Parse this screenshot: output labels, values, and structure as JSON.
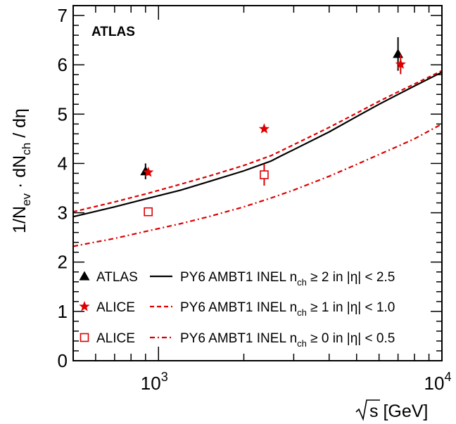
{
  "chart_data": {
    "type": "scatter",
    "annotation": "ATLAS",
    "x_axis": {
      "scale": "log",
      "range": [
        500,
        10000
      ],
      "tick_labels": [
        {
          "value": 1000,
          "base": "10",
          "exp": "3"
        },
        {
          "value": 10000,
          "base": "10",
          "exp": "4"
        }
      ],
      "title_parts": {
        "sqrt": "s",
        "rest": " [GeV]"
      }
    },
    "y_axis": {
      "scale": "linear",
      "range": [
        0,
        7.2
      ],
      "tick_labels": [
        "0",
        "1",
        "2",
        "3",
        "4",
        "5",
        "6",
        "7"
      ],
      "title_parts": {
        "a": "1/N",
        "a_sub": "ev",
        "b": " · dN",
        "b_sub": "ch",
        "c": " / dη"
      }
    },
    "series": [
      {
        "name": "ATLAS",
        "marker": "triangle",
        "color": "#000000",
        "points": [
          {
            "x": 900,
            "y": 3.84,
            "err": 0.16
          },
          {
            "x": 7000,
            "y": 6.22,
            "err": 0.34
          }
        ]
      },
      {
        "name": "ALICE",
        "marker": "star",
        "color": "#dd0000",
        "points": [
          {
            "x": 920,
            "y": 3.82,
            "err": 0.0
          },
          {
            "x": 2360,
            "y": 4.7,
            "err": 0.0
          },
          {
            "x": 7150,
            "y": 6.01,
            "err": 0.2
          }
        ]
      },
      {
        "name": "ALICE",
        "marker": "open-square",
        "color": "#dd0000",
        "points": [
          {
            "x": 920,
            "y": 3.02,
            "err": 0.0
          },
          {
            "x": 2360,
            "y": 3.77,
            "err": 0.22
          }
        ]
      }
    ],
    "curves": [
      {
        "name_parts": {
          "pre": "PY6 AMBT1 INEL n",
          "sub": "ch",
          "post": " ≥ 2 in |η| < 2.5"
        },
        "style": "solid",
        "color": "#000000",
        "x": [
          500,
          700,
          900,
          1200,
          1500,
          2000,
          2500,
          2700,
          3000,
          4000,
          5000,
          6000,
          7000,
          8000,
          10000
        ],
        "y": [
          2.92,
          3.12,
          3.28,
          3.46,
          3.63,
          3.85,
          4.05,
          4.15,
          4.28,
          4.64,
          4.95,
          5.2,
          5.4,
          5.57,
          5.85
        ]
      },
      {
        "name_parts": {
          "pre": "PY6 AMBT1 INEL n",
          "sub": "ch",
          "post": " ≥ 1 in |η| < 1.0"
        },
        "style": "dashed",
        "color": "#dd0000",
        "x": [
          500,
          700,
          900,
          1200,
          1500,
          2000,
          2500,
          3000,
          4000,
          5000,
          6000,
          7000,
          8000,
          10000
        ],
        "y": [
          3.02,
          3.22,
          3.38,
          3.58,
          3.74,
          3.96,
          4.16,
          4.38,
          4.73,
          5.02,
          5.26,
          5.45,
          5.61,
          5.88
        ]
      },
      {
        "name_parts": {
          "pre": "PY6 AMBT1 INEL n",
          "sub": "ch",
          "post": " ≥ 0 in |η| < 0.5"
        },
        "style": "dashdot",
        "color": "#dd0000",
        "x": [
          500,
          700,
          900,
          1200,
          1500,
          2000,
          2500,
          3000,
          4000,
          5000,
          6000,
          7000,
          8000,
          10000
        ],
        "y": [
          2.32,
          2.48,
          2.62,
          2.78,
          2.92,
          3.12,
          3.3,
          3.46,
          3.74,
          3.98,
          4.18,
          4.35,
          4.5,
          4.8
        ]
      }
    ],
    "legend_placement": "bottom"
  }
}
